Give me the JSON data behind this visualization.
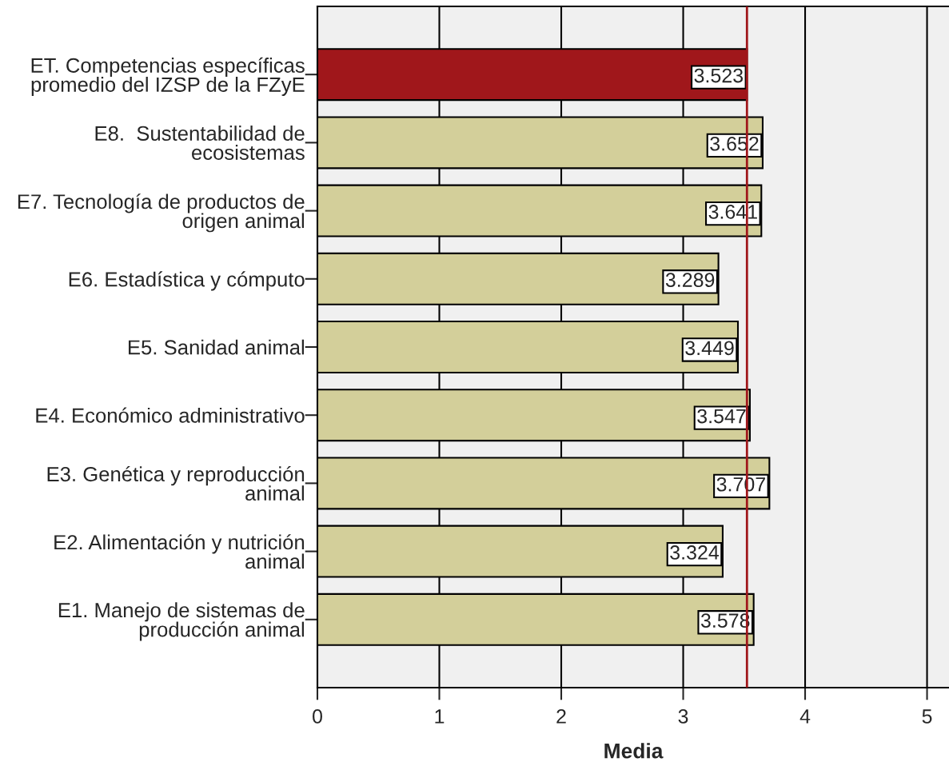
{
  "chart_data": {
    "type": "bar",
    "orientation": "horizontal",
    "xlabel": "Media",
    "categories": [
      "ET. Competencias específicas\npromedio del IZSP de la FZyE",
      "E8.  Sustentabilidad de\necosistemas",
      "E7. Tecnología de productos de\norigen animal",
      "E6. Estadística y cómputo",
      "E5. Sanidad animal",
      "E4. Económico administrativo",
      "E3. Genética y reproducción\nanimal",
      "E2. Alimentación y nutrición\nanimal",
      "E1. Manejo de sistemas de\nproducción animal"
    ],
    "values": [
      3.523,
      3.652,
      3.641,
      3.289,
      3.449,
      3.547,
      3.707,
      3.324,
      3.578
    ],
    "colors": [
      "#a0171b",
      "#d3cf9a",
      "#d3cf9a",
      "#d3cf9a",
      "#d3cf9a",
      "#d3cf9a",
      "#d3cf9a",
      "#d3cf9a",
      "#d3cf9a"
    ],
    "xlim": [
      0,
      5.18
    ],
    "xticks": [
      0,
      1,
      2,
      3,
      4,
      5
    ],
    "ref_lines": [
      {
        "axis": "x",
        "value": 3.523,
        "color": "#a0171b"
      }
    ],
    "data_labels": true,
    "grid": "x",
    "legend": false
  }
}
